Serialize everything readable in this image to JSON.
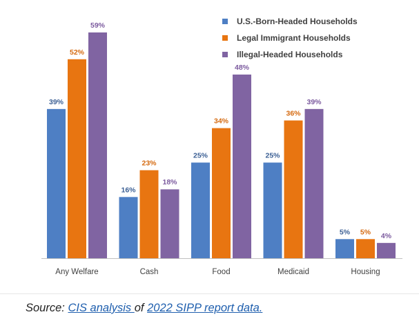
{
  "chart_data": {
    "type": "bar",
    "categories": [
      "Any Welfare",
      "Cash",
      "Food",
      "Medicaid",
      "Housing"
    ],
    "series": [
      {
        "name": "U.S.-Born-Headed Households",
        "values": [
          39,
          16,
          25,
          25,
          5
        ],
        "color": "#4e7fc4"
      },
      {
        "name": "Legal Immigrant Households",
        "values": [
          52,
          23,
          34,
          36,
          5
        ],
        "color": "#e87511"
      },
      {
        "name": "Illegal-Headed Households",
        "values": [
          59,
          18,
          48,
          39,
          4
        ],
        "color": "#8064a2"
      }
    ],
    "value_suffix": "%",
    "title": "",
    "xlabel": "",
    "ylabel": "",
    "ylim": [
      0,
      60
    ],
    "grid": false,
    "legend": "top-right"
  },
  "source": {
    "prefix": "Source: ",
    "link1": "CIS analysis ",
    "middle": "of ",
    "link2": "2022 SIPP report data."
  }
}
